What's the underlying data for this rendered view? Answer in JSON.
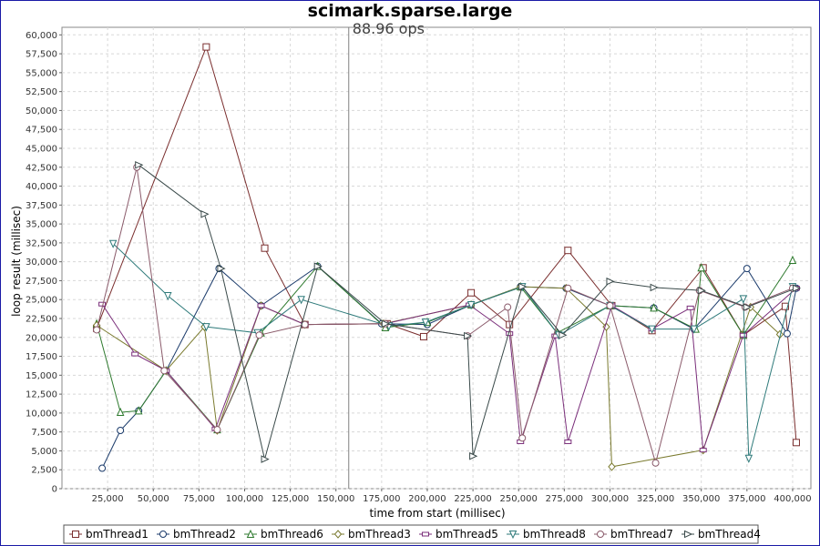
{
  "chart_data": {
    "type": "line",
    "title": "scimark.sparse.large",
    "annotation": "88.96 ops",
    "annotation_x": 157000,
    "xlabel": "time from start (millisec)",
    "ylabel": "loop result (millisec)",
    "xlim": [
      0,
      410000
    ],
    "ylim": [
      0,
      61000
    ],
    "x_ticks": [
      25000,
      50000,
      75000,
      100000,
      125000,
      150000,
      175000,
      200000,
      225000,
      250000,
      275000,
      300000,
      325000,
      350000,
      375000,
      400000
    ],
    "x_tick_labels": [
      "25,000",
      "50,000",
      "75,000",
      "100,000",
      "125,000",
      "150,000",
      "175,000",
      "200,000",
      "225,000",
      "250,000",
      "275,000",
      "300,000",
      "325,000",
      "350,000",
      "375,000",
      "400,000"
    ],
    "y_ticks": [
      0,
      2500,
      5000,
      7500,
      10000,
      12500,
      15000,
      17500,
      20000,
      22500,
      25000,
      27500,
      30000,
      32500,
      35000,
      37500,
      40000,
      42500,
      45000,
      47500,
      50000,
      52500,
      55000,
      57500,
      60000
    ],
    "y_tick_labels": [
      "0",
      "2,500",
      "5,000",
      "7,500",
      "10,000",
      "12,500",
      "15,000",
      "17,500",
      "20,000",
      "22,500",
      "25,000",
      "27,500",
      "30,000",
      "32,500",
      "35,000",
      "37,500",
      "40,000",
      "42,500",
      "45,000",
      "47,500",
      "50,000",
      "52,500",
      "55,000",
      "57,500",
      "60,000"
    ],
    "grid": true,
    "legend_position": "bottom",
    "series": [
      {
        "name": "bmThread1",
        "color": "#7a2e2e",
        "marker": "square",
        "points": [
          [
            19000,
            21200
          ],
          [
            79000,
            58400
          ],
          [
            111000,
            31800
          ],
          [
            133000,
            21700
          ],
          [
            178000,
            21800
          ],
          [
            198000,
            20100
          ],
          [
            224000,
            25900
          ],
          [
            245000,
            21700
          ],
          [
            277000,
            31500
          ],
          [
            301000,
            24200
          ],
          [
            323000,
            20900
          ],
          [
            351000,
            29200
          ],
          [
            373000,
            20300
          ],
          [
            396000,
            24100
          ],
          [
            402000,
            6100
          ]
        ]
      },
      {
        "name": "bmThread2",
        "color": "#1a3a6a",
        "marker": "circle",
        "points": [
          [
            22000,
            2700
          ],
          [
            32000,
            7700
          ],
          [
            42000,
            10300
          ],
          [
            57000,
            15600
          ],
          [
            86000,
            29100
          ],
          [
            109000,
            24200
          ],
          [
            140000,
            29400
          ],
          [
            175000,
            21800
          ],
          [
            200000,
            21700
          ],
          [
            224000,
            24300
          ],
          [
            251000,
            26700
          ],
          [
            276000,
            26500
          ],
          [
            300000,
            24200
          ],
          [
            324000,
            23900
          ],
          [
            346000,
            21100
          ],
          [
            375000,
            29100
          ],
          [
            397000,
            20500
          ],
          [
            402000,
            26500
          ]
        ]
      },
      {
        "name": "bmThread6",
        "color": "#2e7a2e",
        "marker": "triangle-up",
        "points": [
          [
            19000,
            21800
          ],
          [
            32000,
            10100
          ],
          [
            42000,
            10300
          ],
          [
            57000,
            15600
          ],
          [
            85000,
            7800
          ],
          [
            109000,
            20600
          ],
          [
            140000,
            29400
          ],
          [
            177000,
            21300
          ],
          [
            200000,
            22000
          ],
          [
            224000,
            24300
          ],
          [
            251000,
            26700
          ],
          [
            271000,
            20600
          ],
          [
            300000,
            24200
          ],
          [
            324000,
            23900
          ],
          [
            347000,
            21100
          ],
          [
            350000,
            29200
          ],
          [
            373000,
            20300
          ],
          [
            400000,
            30200
          ]
        ]
      },
      {
        "name": "bmThread3",
        "color": "#7a7a2e",
        "marker": "diamond",
        "points": [
          [
            19000,
            21600
          ],
          [
            57000,
            15600
          ],
          [
            78000,
            21400
          ],
          [
            85000,
            7700
          ],
          [
            109000,
            24200
          ],
          [
            133000,
            21700
          ],
          [
            176000,
            21800
          ],
          [
            224000,
            24300
          ],
          [
            251000,
            26700
          ],
          [
            276000,
            26500
          ],
          [
            298000,
            21400
          ],
          [
            301000,
            2900
          ],
          [
            351000,
            5100
          ],
          [
            377000,
            24000
          ],
          [
            393000,
            20400
          ]
        ]
      },
      {
        "name": "bmThread5",
        "color": "#7a2e7a",
        "marker": "rect",
        "points": [
          [
            22000,
            24400
          ],
          [
            40000,
            17800
          ],
          [
            57000,
            15600
          ],
          [
            84000,
            7900
          ],
          [
            109000,
            24200
          ],
          [
            133000,
            21700
          ],
          [
            177000,
            21800
          ],
          [
            223000,
            24300
          ],
          [
            245000,
            20500
          ],
          [
            251000,
            6200
          ],
          [
            270000,
            20200
          ],
          [
            277000,
            6200
          ],
          [
            301000,
            24200
          ],
          [
            323000,
            21100
          ],
          [
            344000,
            23900
          ],
          [
            351000,
            5100
          ],
          [
            373000,
            20300
          ],
          [
            402000,
            26500
          ]
        ]
      },
      {
        "name": "bmThread8",
        "color": "#2e7a7a",
        "marker": "triangle-down",
        "points": [
          [
            28000,
            32400
          ],
          [
            58000,
            25500
          ],
          [
            79000,
            21400
          ],
          [
            107000,
            20600
          ],
          [
            131000,
            25000
          ],
          [
            179000,
            21500
          ],
          [
            199000,
            22000
          ],
          [
            224000,
            24300
          ],
          [
            252000,
            26700
          ],
          [
            272000,
            20300
          ],
          [
            300000,
            24200
          ],
          [
            323000,
            21100
          ],
          [
            346000,
            21100
          ],
          [
            373000,
            25100
          ],
          [
            376000,
            4000
          ],
          [
            400000,
            26700
          ]
        ]
      },
      {
        "name": "bmThread7",
        "color": "#8a5a6a",
        "marker": "circle",
        "points": [
          [
            19000,
            21000
          ],
          [
            41000,
            42500
          ],
          [
            56000,
            15600
          ],
          [
            85000,
            7800
          ],
          [
            108000,
            20300
          ],
          [
            133000,
            21700
          ],
          [
            177000,
            21800
          ],
          [
            222000,
            20200
          ],
          [
            244000,
            24000
          ],
          [
            252000,
            6700
          ],
          [
            277000,
            26500
          ],
          [
            300000,
            24200
          ],
          [
            325000,
            3400
          ],
          [
            349000,
            26200
          ],
          [
            374000,
            24000
          ],
          [
            400000,
            26500
          ]
        ]
      },
      {
        "name": "bmThread4",
        "color": "#3a4a4a",
        "marker": "triangle-right",
        "points": [
          [
            42000,
            42800
          ],
          [
            78000,
            36300
          ],
          [
            87000,
            29100
          ],
          [
            111000,
            3900
          ],
          [
            140000,
            29400
          ],
          [
            177000,
            21800
          ],
          [
            222000,
            20200
          ],
          [
            225000,
            4300
          ],
          [
            252000,
            26700
          ],
          [
            274000,
            20300
          ],
          [
            300000,
            27400
          ],
          [
            324000,
            26600
          ],
          [
            350000,
            26200
          ],
          [
            375000,
            24000
          ],
          [
            402000,
            26500
          ]
        ]
      }
    ]
  }
}
